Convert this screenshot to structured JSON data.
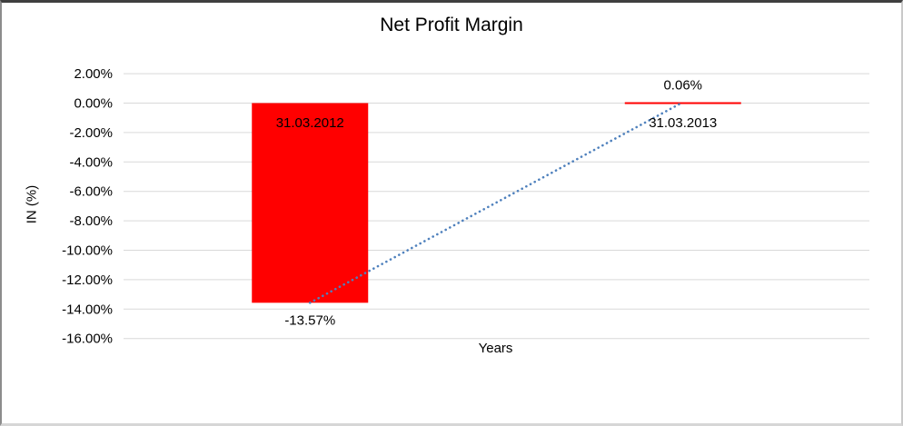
{
  "chart_data": {
    "type": "bar",
    "title": "Net Profit Margin",
    "xlabel": "Years",
    "ylabel": "IN (%)",
    "categories": [
      "31.03.2012",
      "31.03.2013"
    ],
    "values": [
      -13.57,
      0.06
    ],
    "data_labels": [
      "-13.57%",
      "0.06%"
    ],
    "ytick_labels": [
      "2.00%",
      "0.00%",
      "-2.00%",
      "-4.00%",
      "-6.00%",
      "-8.00%",
      "-10.00%",
      "-12.00%",
      "-14.00%",
      "-16.00%"
    ],
    "ylim": [
      -16,
      2
    ],
    "ytick_step": 2,
    "grid": true,
    "legend": false,
    "bar_color": "#ff0000",
    "text_color": "#000000",
    "gridline_color": "#d9d9d9",
    "trendline": {
      "style": "dotted",
      "color": "#4f81bd",
      "from_category": 0,
      "to_category": 1
    }
  }
}
